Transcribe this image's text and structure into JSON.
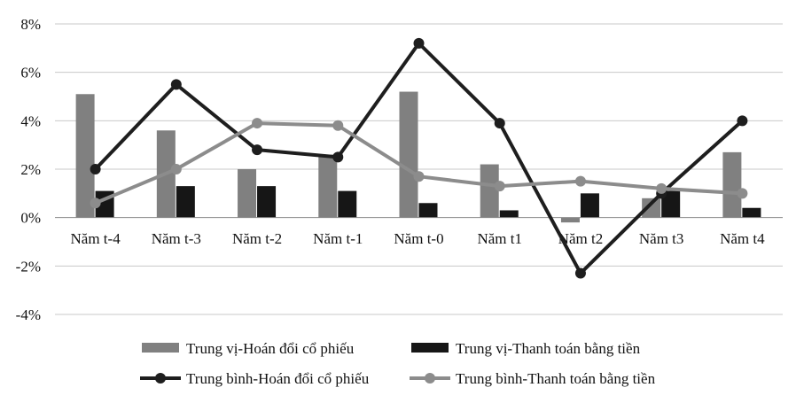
{
  "chart_data": {
    "type": "bar",
    "categories": [
      "Năm t-4",
      "Năm t-3",
      "Năm t-2",
      "Năm t-1",
      "Năm t-0",
      "Năm t1",
      "Năm t2",
      "Năm t3",
      "Năm t4"
    ],
    "series": [
      {
        "name": "Trung vị-Hoán đổi cổ phiếu",
        "kind": "bar",
        "color": "#808080",
        "values": [
          5.1,
          3.6,
          2.0,
          2.6,
          5.2,
          2.2,
          -0.2,
          0.8,
          2.7
        ]
      },
      {
        "name": "Trung vị-Thanh toán bằng tiền",
        "kind": "bar",
        "color": "#161616",
        "values": [
          1.1,
          1.3,
          1.3,
          1.1,
          0.6,
          0.3,
          1.0,
          1.1,
          0.4
        ]
      },
      {
        "name": "Trung bình-Hoán đổi cổ phiếu",
        "kind": "line",
        "color": "#1e1e1e",
        "values": [
          2.0,
          5.5,
          2.8,
          2.5,
          7.2,
          3.9,
          -2.3,
          1.0,
          4.0
        ]
      },
      {
        "name": "Trung bình-Thanh toán bằng tiền",
        "kind": "line",
        "color": "#8c8c8c",
        "values": [
          0.6,
          2.0,
          3.9,
          3.8,
          1.7,
          1.3,
          1.5,
          1.2,
          1.0
        ]
      }
    ],
    "y_ticks": [
      "8%",
      "6%",
      "4%",
      "2%",
      "0%",
      "-2%",
      "-4%"
    ],
    "y_tick_values": [
      8,
      6,
      4,
      2,
      0,
      -2,
      -4
    ],
    "ylim": [
      -4,
      8
    ],
    "grid": "horizontal",
    "legend_position": "bottom"
  }
}
